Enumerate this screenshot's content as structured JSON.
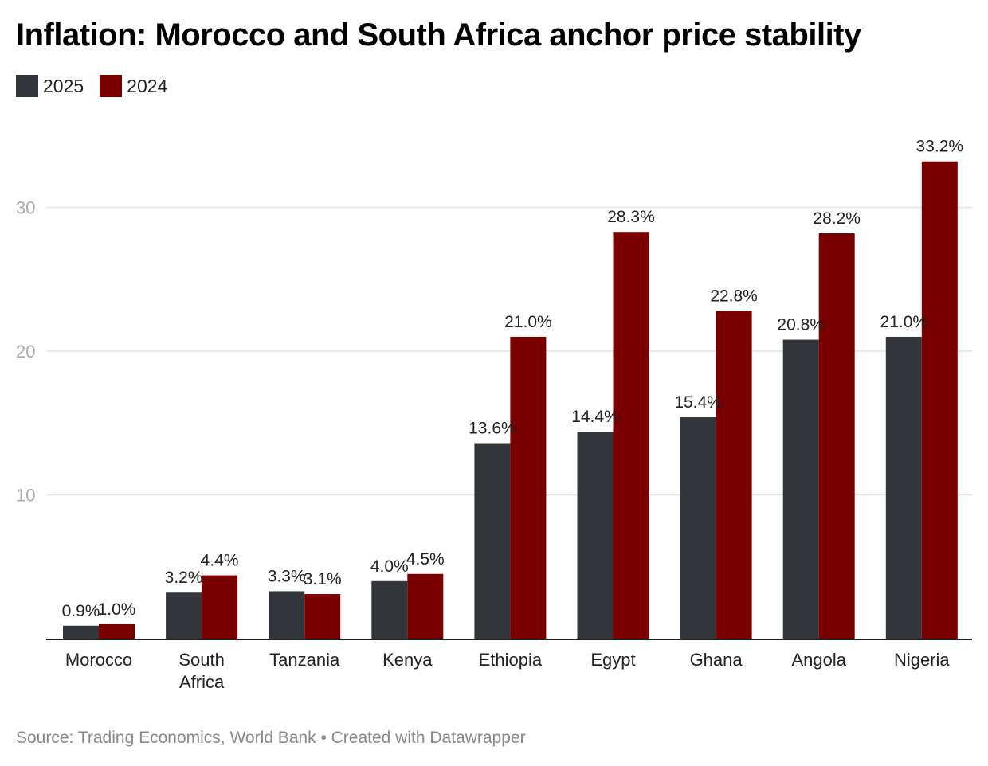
{
  "title": "Inflation: Morocco and South Africa anchor price stability",
  "legend": [
    {
      "label": "2025",
      "color": "#323539"
    },
    {
      "label": "2024",
      "color": "#7a0000"
    }
  ],
  "footer": "Source: Trading Economics, World Bank • Created with Datawrapper",
  "chart_data": {
    "type": "bar",
    "title": "Inflation: Morocco and South Africa anchor price stability",
    "xlabel": "",
    "ylabel": "",
    "ylim": [
      0,
      34
    ],
    "yticks": [
      10,
      20,
      30
    ],
    "ytick_labels": [
      "10",
      "20",
      "30"
    ],
    "grid": true,
    "legend_position": "top-left",
    "categories": [
      "Morocco",
      "South Africa",
      "Tanzania",
      "Kenya",
      "Ethiopia",
      "Egypt",
      "Ghana",
      "Angola",
      "Nigeria"
    ],
    "category_lines": [
      [
        "Morocco"
      ],
      [
        "South",
        "Africa"
      ],
      [
        "Tanzania"
      ],
      [
        "Kenya"
      ],
      [
        "Ethiopia"
      ],
      [
        "Egypt"
      ],
      [
        "Ghana"
      ],
      [
        "Angola"
      ],
      [
        "Nigeria"
      ]
    ],
    "series": [
      {
        "name": "2025",
        "color": "#323539",
        "values": [
          0.9,
          3.2,
          3.3,
          4.0,
          13.6,
          14.4,
          15.4,
          20.8,
          21.0
        ],
        "labels": [
          "0.9%",
          "3.2%",
          "3.3%",
          "4.0%",
          "13.6%",
          "14.4%",
          "15.4%",
          "20.8%",
          "21.0%"
        ]
      },
      {
        "name": "2024",
        "color": "#7a0000",
        "values": [
          1.0,
          4.4,
          3.1,
          4.5,
          21.0,
          28.3,
          22.8,
          28.2,
          33.2
        ],
        "labels": [
          "1.0%",
          "4.4%",
          "3.1%",
          "4.5%",
          "21.0%",
          "28.3%",
          "22.8%",
          "28.2%",
          "33.2%"
        ]
      }
    ]
  }
}
